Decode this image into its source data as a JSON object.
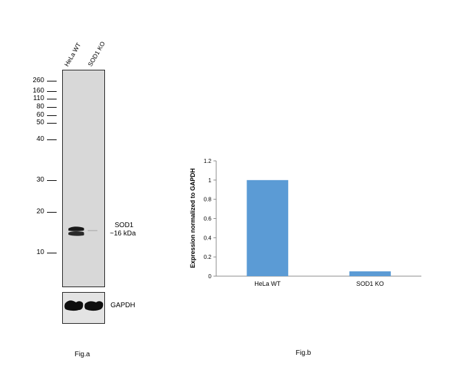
{
  "blot": {
    "lanes": [
      "HeLa WT",
      "SOD1 KO"
    ],
    "markers": [
      "260",
      "160",
      "110",
      "80",
      "60",
      "50",
      "40",
      "30",
      "20",
      "10"
    ],
    "band_label": "SOD1",
    "band_size": "~16 kDa",
    "loading_control": "GAPDH",
    "fig_label": "Fig.a"
  },
  "fig_b_label": "Fig.b",
  "chart_data": {
    "type": "bar",
    "categories": [
      "HeLa WT",
      "SOD1 KO"
    ],
    "values": [
      1.0,
      0.05
    ],
    "ylabel": "Expression normalized to GAPDH",
    "xlabel": "",
    "ylim": [
      0,
      1.2
    ],
    "yticks": [
      "0",
      "0.2",
      "0.4",
      "0.6",
      "0.8",
      "1",
      "1.2"
    ],
    "bar_color": "#5b9bd5",
    "grid": false
  }
}
